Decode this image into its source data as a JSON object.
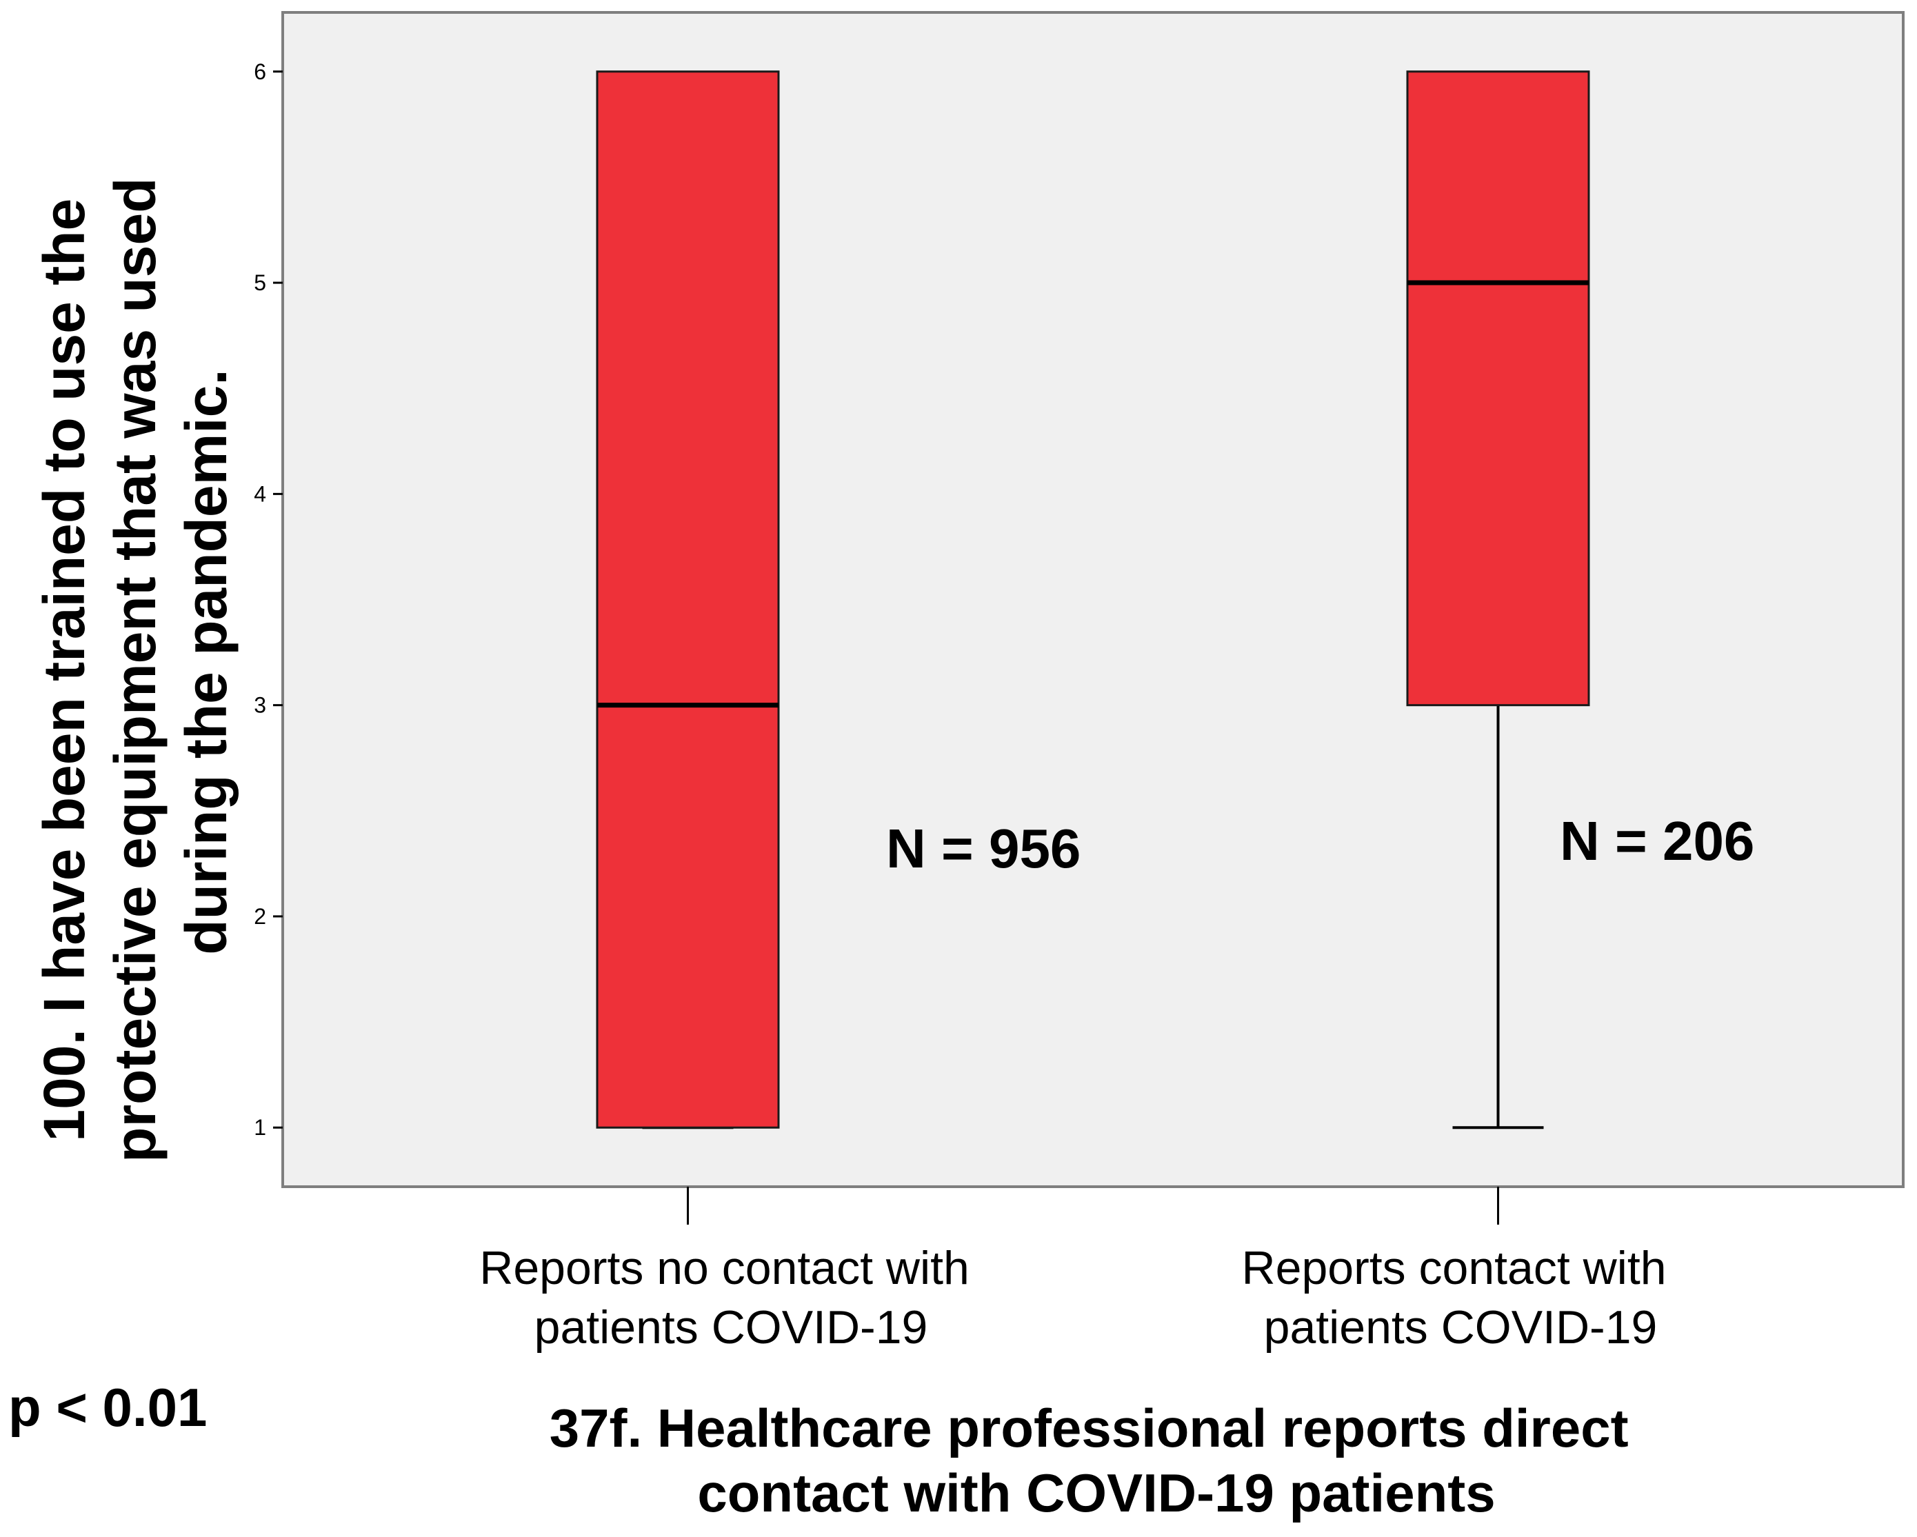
{
  "chart_data": {
    "type": "boxplot",
    "ylabel_lines": [
      "100. I have been trained to use the",
      "protective equipment that was used",
      "during the pandemic."
    ],
    "xlabel_lines": [
      "37f. Healthcare professional reports direct",
      "contact with COVID-19 patients"
    ],
    "ylim": [
      0.72,
      6.28
    ],
    "yticks": [
      1,
      2,
      3,
      4,
      5,
      6
    ],
    "categories": [
      {
        "label_lines": [
          "Reports no contact with",
          "patients COVID-19"
        ],
        "min": 1,
        "q1": 1,
        "median": 3,
        "q3": 6,
        "max": 6,
        "n_label": "N = 956"
      },
      {
        "label_lines": [
          "Reports contact with",
          "patients COVID-19"
        ],
        "min": 1,
        "q1": 3,
        "median": 5,
        "q3": 6,
        "max": 6,
        "n_label": "N = 206"
      }
    ],
    "annotation": "p < 0.01",
    "colors": {
      "box_fill": "#ee3139",
      "plot_bg": "#f0f0f0",
      "frame": "#7f7f7f"
    }
  }
}
